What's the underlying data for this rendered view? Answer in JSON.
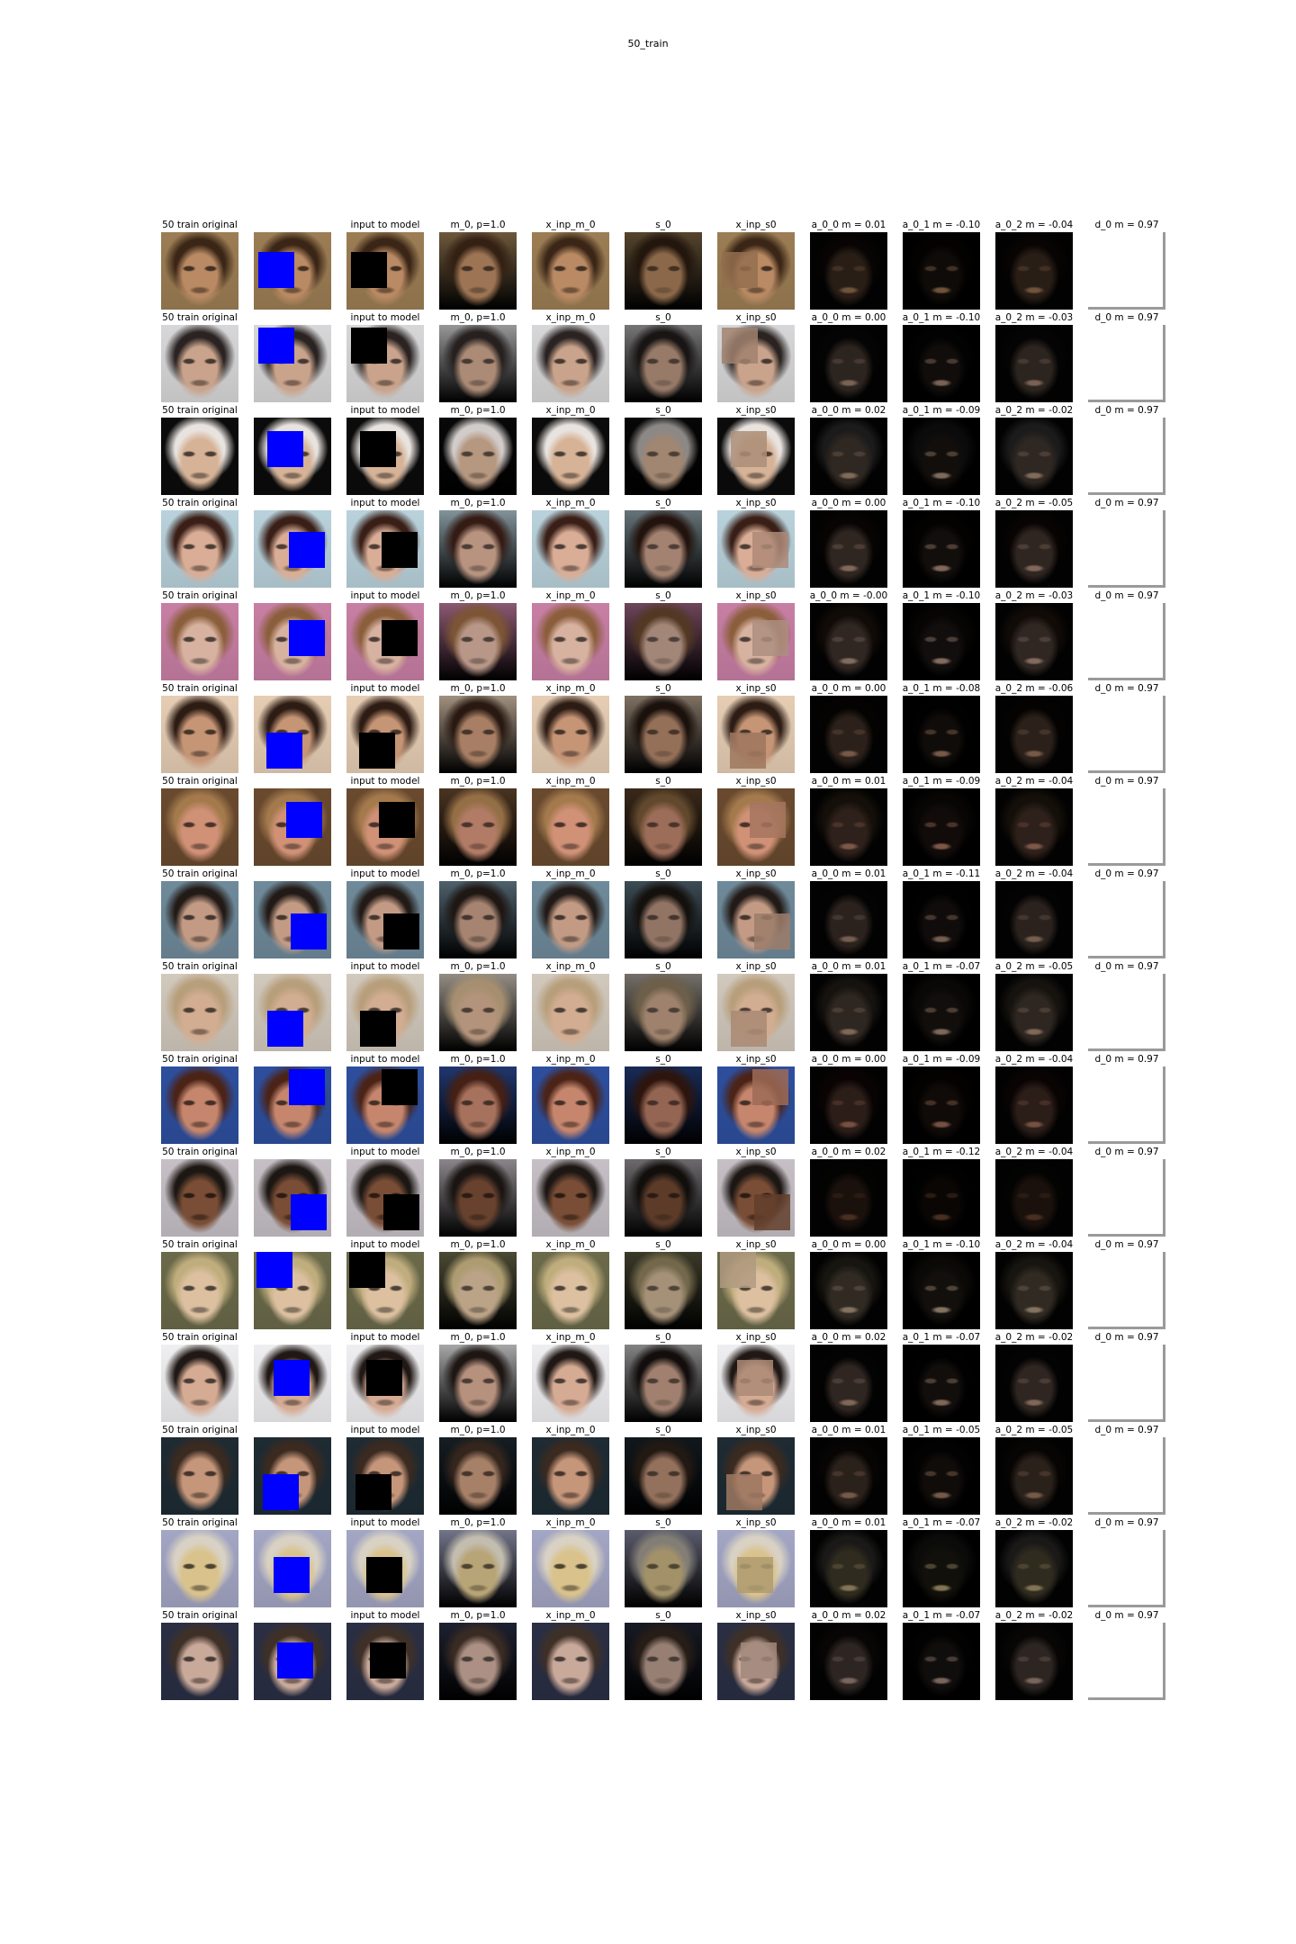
{
  "figure_title": "50_train",
  "columns": [
    "original",
    "masked",
    "input_to_model",
    "m_0",
    "x_inp_m_0",
    "s_0",
    "x_inp_s0",
    "a_0_0",
    "a_0_1",
    "a_0_2",
    "d_0"
  ],
  "label_orig": "50 train  original",
  "label_input": "input to model",
  "label_m0": "m_0, p=1.0",
  "label_xinp_m0": "x_inp_m_0",
  "label_s0": "s_0",
  "label_xinp_s0": "x_inp_s0",
  "label_d0": "d_0 m = 0.97",
  "mask_color": "#0000ff",
  "rows": [
    {
      "a00": "a_0_0 m = 0.01",
      "a01": "a_0_1 m = -0.10",
      "a02": "a_0_2 m = -0.04",
      "skin": "#b98a63",
      "hair": "#3a2516",
      "bg": "#9c7d54",
      "mask": [
        0.06,
        0.26
      ]
    },
    {
      "a00": "a_0_0 m = 0.00",
      "a01": "a_0_1 m = -0.10",
      "a02": "a_0_2 m = -0.03",
      "skin": "#c9a38b",
      "hair": "#2a2322",
      "bg": "#d7d7d9",
      "mask": [
        0.06,
        0.03
      ]
    },
    {
      "a00": "a_0_0 m = 0.02",
      "a01": "a_0_1 m = -0.09",
      "a02": "a_0_2 m = -0.02",
      "skin": "#d6b296",
      "hair": "#e8e3df",
      "bg": "#0b0b0b",
      "mask": [
        0.18,
        0.18
      ]
    },
    {
      "a00": "a_0_0 m = 0.00",
      "a01": "a_0_1 m = -0.10",
      "a02": "a_0_2 m = -0.05",
      "skin": "#d9ad96",
      "hair": "#3a1f17",
      "bg": "#b9d2dc",
      "mask": [
        0.45,
        0.28
      ]
    },
    {
      "a00": "a_0_0 m = -0.00",
      "a01": "a_0_1 m = -0.10",
      "a02": "a_0_2 m = -0.03",
      "skin": "#d8b2a0",
      "hair": "#8b5e3c",
      "bg": "#c87fa4",
      "mask": [
        0.45,
        0.22
      ]
    },
    {
      "a00": "a_0_0 m = 0.00",
      "a01": "a_0_1 m = -0.08",
      "a02": "a_0_2 m = -0.06",
      "skin": "#c69576",
      "hair": "#2d1c14",
      "bg": "#e6cdb4",
      "mask": [
        0.16,
        0.48
      ]
    },
    {
      "a00": "a_0_0 m = 0.01",
      "a01": "a_0_1 m = -0.09",
      "a02": "a_0_2 m = -0.04",
      "skin": "#d09177",
      "hair": "#a47a4d",
      "bg": "#6a4a2f",
      "mask": [
        0.42,
        0.18
      ]
    },
    {
      "a00": "a_0_0 m = 0.01",
      "a01": "a_0_1 m = -0.11",
      "a02": "a_0_2 m = -0.04",
      "skin": "#c39b85",
      "hair": "#221a16",
      "bg": "#6f8a9a",
      "mask": [
        0.48,
        0.42
      ]
    },
    {
      "a00": "a_0_0 m = 0.01",
      "a01": "a_0_1 m = -0.07",
      "a02": "a_0_2 m = -0.05",
      "skin": "#d3ad91",
      "hair": "#b89f7c",
      "bg": "#d2c9bd",
      "mask": [
        0.18,
        0.48
      ]
    },
    {
      "a00": "a_0_0 m = 0.00",
      "a01": "a_0_1 m = -0.09",
      "a02": "a_0_2 m = -0.04",
      "skin": "#c5866d",
      "hair": "#4b2317",
      "bg": "#2e4f9e",
      "mask": [
        0.45,
        0.03
      ]
    },
    {
      "a00": "a_0_0 m = 0.02",
      "a01": "a_0_1 m = -0.12",
      "a02": "a_0_2 m = -0.04",
      "skin": "#7a4e36",
      "hair": "#1d1714",
      "bg": "#c6c0c6",
      "mask": [
        0.48,
        0.45
      ]
    },
    {
      "a00": "a_0_0 m = 0.00",
      "a01": "a_0_1 m = -0.10",
      "a02": "a_0_2 m = -0.04",
      "skin": "#dcc0a0",
      "hair": "#c0ad7d",
      "bg": "#6b6a4a",
      "mask": [
        0.03,
        0.0
      ]
    },
    {
      "a00": "a_0_0 m = 0.02",
      "a01": "a_0_1 m = -0.07",
      "a02": "a_0_2 m = -0.02",
      "skin": "#d6ab94",
      "hair": "#201815",
      "bg": "#efeef0",
      "mask": [
        0.25,
        0.2
      ]
    },
    {
      "a00": "a_0_0 m = 0.01",
      "a01": "a_0_1 m = -0.05",
      "a02": "a_0_2 m = -0.05",
      "skin": "#c5967a",
      "hair": "#3b2a20",
      "bg": "#1e2b33",
      "mask": [
        0.12,
        0.48
      ]
    },
    {
      "a00": "a_0_0 m = 0.01",
      "a01": "a_0_1 m = -0.07",
      "a02": "a_0_2 m = -0.02",
      "skin": "#d9c28c",
      "hair": "#d9d2c4",
      "bg": "#a3a6c4",
      "mask": [
        0.25,
        0.35
      ]
    },
    {
      "a00": "a_0_0 m = 0.02",
      "a01": "a_0_1 m = -0.07",
      "a02": "a_0_2 m = -0.02",
      "skin": "#c9a99a",
      "hair": "#3f3027",
      "bg": "#2a2f44",
      "mask": [
        0.3,
        0.25
      ]
    }
  ]
}
